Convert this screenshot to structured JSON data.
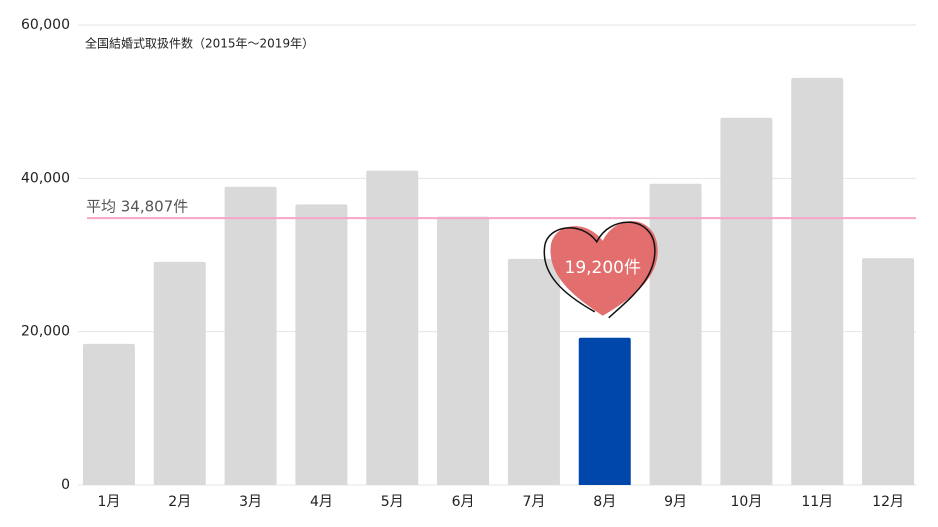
{
  "chart_data": {
    "type": "bar",
    "title": "全国結婚式取扱件数（2015年〜2019年）",
    "categories": [
      "1月",
      "2月",
      "3月",
      "4月",
      "5月",
      "6月",
      "7月",
      "8月",
      "9月",
      "10月",
      "11月",
      "12月"
    ],
    "values": [
      18400,
      29100,
      38900,
      36600,
      41000,
      35000,
      29500,
      19200,
      39300,
      47900,
      53100,
      29600
    ],
    "value_labels": [
      null,
      null,
      null,
      null,
      null,
      null,
      null,
      "19,200件",
      null,
      null,
      null,
      null
    ],
    "colors": [
      "#d9d9d9",
      "#d9d9d9",
      "#d9d9d9",
      "#d9d9d9",
      "#d9d9d9",
      "#d9d9d9",
      "#d9d9d9",
      "#0047ab",
      "#d9d9d9",
      "#d9d9d9",
      "#d9d9d9",
      "#d9d9d9"
    ],
    "average": {
      "value": 34807,
      "label": "平均 34,807件",
      "color": "#f4a6c8"
    },
    "ylim": [
      0,
      60000
    ],
    "yticks": [
      0,
      {
        "value": 20000,
        "label": "20,000"
      },
      {
        "value": 40000,
        "label": "40,000"
      },
      {
        "value": 60000,
        "label": "60,000"
      }
    ],
    "grid": true
  }
}
